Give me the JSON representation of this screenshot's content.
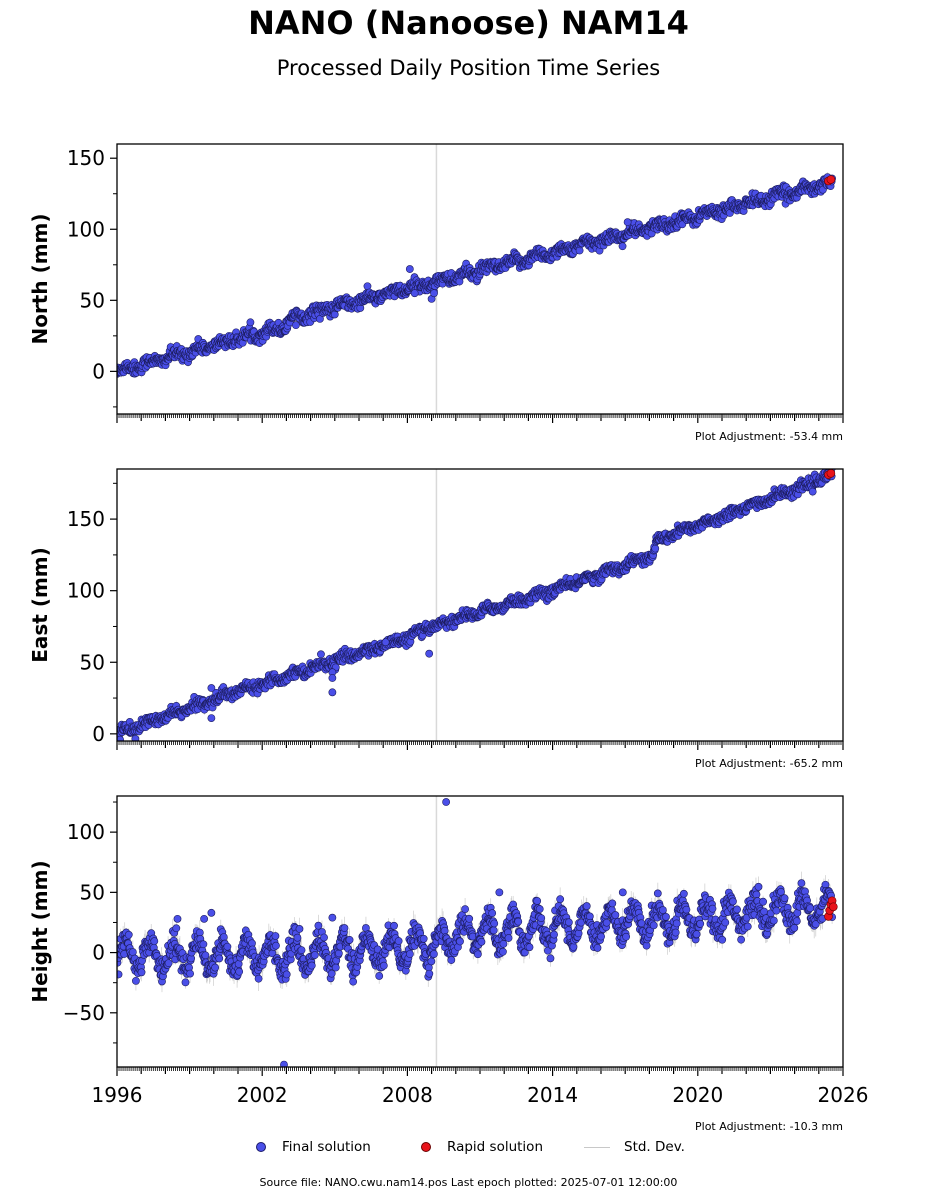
{
  "title": "NANO (Nanoose) NAM14",
  "subtitle": "Processed Daily Position Time Series",
  "footer": "Source file: NANO.cwu.nam14.pos  Last epoch plotted: 2025-07-01 12:00:00",
  "legend": {
    "final": "Final solution",
    "rapid": "Rapid solution",
    "std": "Std. Dev."
  },
  "colors": {
    "final": "#4a4fe8",
    "final_edge": "#1c1c5e",
    "rapid": "#e8141b",
    "std": "#c8c8c8",
    "marker_line": "#d9d9d9"
  },
  "chart_data": [
    {
      "type": "scatter",
      "ylabel": "North (mm)",
      "adjustment": "Plot Adjustment: -53.4 mm",
      "xlim": [
        1996,
        2026
      ],
      "ylim": [
        -30,
        160
      ],
      "yticks": [
        0,
        50,
        100,
        150
      ],
      "ytick_labels": [
        "0",
        "50",
        "100",
        "150"
      ],
      "vline_x": 2009.2,
      "trend": {
        "points": [
          [
            1996.0,
            0
          ],
          [
            2003.0,
            32
          ],
          [
            2003.1,
            37
          ],
          [
            2026.0,
            135
          ]
        ],
        "annual_amplitude": 1.8,
        "noise": 2.2
      },
      "outliers": [
        [
          2008.1,
          72
        ],
        [
          2008.3,
          55
        ],
        [
          2009.0,
          51
        ],
        [
          2009.1,
          55
        ],
        [
          2017.1,
          105
        ]
      ],
      "rapid": [
        [
          2025.4,
          134
        ],
        [
          2025.5,
          135
        ]
      ]
    },
    {
      "type": "scatter",
      "ylabel": "East (mm)",
      "adjustment": "Plot Adjustment: -65.2 mm",
      "xlim": [
        1996,
        2026
      ],
      "ylim": [
        -5,
        185
      ],
      "yticks": [
        0,
        50,
        100,
        150
      ],
      "ytick_labels": [
        "0",
        "50",
        "100",
        "150"
      ],
      "vline_x": 2009.2,
      "trend": {
        "points": [
          [
            1996.0,
            0
          ],
          [
            2001.0,
            30
          ],
          [
            2008.0,
            67
          ],
          [
            2009.0,
            75
          ],
          [
            2014.0,
            100
          ],
          [
            2018.2,
            125
          ],
          [
            2018.3,
            135
          ],
          [
            2026.0,
            183
          ]
        ],
        "annual_amplitude": 1.5,
        "noise": 1.8
      },
      "outliers": [
        [
          1999.9,
          32
        ],
        [
          1999.9,
          11
        ],
        [
          2004.9,
          43
        ],
        [
          2004.9,
          39
        ],
        [
          2004.9,
          29
        ],
        [
          2008.9,
          56
        ],
        [
          2007.1,
          64
        ]
      ],
      "rapid": [
        [
          2025.4,
          181
        ],
        [
          2025.5,
          182
        ]
      ]
    },
    {
      "type": "scatter",
      "ylabel": "Height (mm)",
      "adjustment": "Plot Adjustment: -10.3 mm",
      "xlim": [
        1996,
        2026
      ],
      "ylim": [
        -95,
        130
      ],
      "yticks": [
        -50,
        0,
        50,
        100
      ],
      "ytick_labels": [
        "−50",
        "0",
        "50",
        "100"
      ],
      "xticks": [
        1996,
        2002,
        2008,
        2014,
        2020,
        2026
      ],
      "xtick_labels": [
        "1996",
        "2002",
        "2008",
        "2014",
        "2020",
        "2026"
      ],
      "vline_x": 2009.2,
      "trend": {
        "points": [
          [
            1996.0,
            -2
          ],
          [
            2002.9,
            -2
          ],
          [
            2009.0,
            5
          ],
          [
            2010.0,
            15
          ],
          [
            2026.0,
            38
          ]
        ],
        "annual_amplitude": 12,
        "noise": 5
      },
      "outliers": [
        [
          2002.9,
          -93
        ],
        [
          2009.6,
          125
        ],
        [
          2011.8,
          50
        ],
        [
          1999.6,
          28
        ],
        [
          1999.9,
          33
        ],
        [
          2004.9,
          29
        ],
        [
          1998.5,
          28
        ],
        [
          2016.9,
          50
        ]
      ],
      "rapid": [
        [
          2025.4,
          30
        ],
        [
          2025.45,
          35
        ],
        [
          2025.5,
          40
        ],
        [
          2025.55,
          43
        ],
        [
          2025.6,
          38
        ]
      ]
    }
  ]
}
